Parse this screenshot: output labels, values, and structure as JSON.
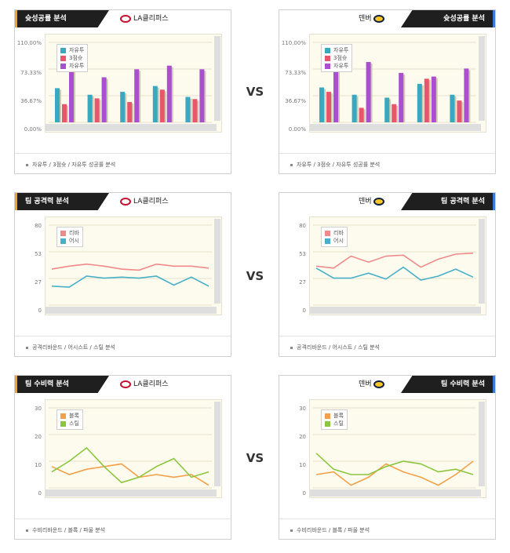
{
  "vs_label": "VS",
  "teams": {
    "left": "LA클리퍼스",
    "right": "덴버"
  },
  "colors": {
    "bar1": "#3aa8c1",
    "bar2": "#e8566b",
    "bar3": "#a94fd0",
    "line_red": "#f08a8a",
    "line_blue": "#47b0c8",
    "line_orange": "#f3a048",
    "line_green": "#8cc63f",
    "tab_left_accent": "#f3a12e",
    "tab_right_accent": "#3a7bd5"
  },
  "chart_data": [
    {
      "panel": "shooting-left",
      "type": "bar",
      "title": "슛성공률 분석",
      "yticks": [
        "110.00%",
        "73.33%",
        "36.67%",
        "0.00%"
      ],
      "ylim": [
        0,
        110
      ],
      "legend": [
        "자유투",
        "3점슛",
        "자유투"
      ],
      "categories": [
        "",
        "",
        "",
        "",
        ""
      ],
      "series": [
        {
          "name": "자유투",
          "values": [
            47,
            38,
            42,
            50,
            35
          ]
        },
        {
          "name": "3점슛",
          "values": [
            25,
            33,
            28,
            45,
            32
          ]
        },
        {
          "name": "자유투",
          "values": [
            80,
            62,
            73,
            78,
            73
          ]
        }
      ],
      "footer": "자유투 / 3점슛 / 자유투 성공률 분석"
    },
    {
      "panel": "shooting-right",
      "type": "bar",
      "title": "슛성공률 분석",
      "yticks": [
        "110.00%",
        "73.33%",
        "36.67%",
        "0.00%"
      ],
      "ylim": [
        0,
        110
      ],
      "legend": [
        "자유투",
        "3점슛",
        "자유투"
      ],
      "categories": [
        "",
        "",
        "",
        "",
        ""
      ],
      "series": [
        {
          "name": "자유투",
          "values": [
            48,
            38,
            34,
            53,
            38
          ]
        },
        {
          "name": "3점슛",
          "values": [
            42,
            20,
            25,
            60,
            30
          ]
        },
        {
          "name": "자유투",
          "values": [
            75,
            83,
            68,
            63,
            74
          ]
        }
      ],
      "footer": "자유투 / 3점슛 / 자유투 성공률 분석"
    },
    {
      "panel": "offense-left",
      "type": "line",
      "title": "팀 공격력 분석",
      "yticks": [
        "80",
        "53",
        "27",
        "0"
      ],
      "ylim": [
        0,
        80
      ],
      "legend": [
        "리바",
        "어시"
      ],
      "series": [
        {
          "name": "리바",
          "values": [
            36,
            39,
            41,
            39,
            36,
            35,
            41,
            39,
            39,
            37
          ]
        },
        {
          "name": "어시",
          "values": [
            19,
            18,
            29,
            27,
            28,
            27,
            29,
            20,
            28,
            19
          ]
        }
      ],
      "footer": "공격리바운드 / 어시스트 / 스틸 분석"
    },
    {
      "panel": "offense-right",
      "type": "line",
      "title": "팀 공격력 분석",
      "yticks": [
        "80",
        "53",
        "27",
        "0"
      ],
      "ylim": [
        0,
        80
      ],
      "legend": [
        "리바",
        "어시"
      ],
      "series": [
        {
          "name": "리바",
          "values": [
            39,
            37,
            49,
            43,
            49,
            50,
            38,
            46,
            51,
            52
          ]
        },
        {
          "name": "어시",
          "values": [
            37,
            27,
            27,
            32,
            26,
            38,
            25,
            29,
            36,
            28
          ]
        }
      ],
      "footer": "공격리바운드 / 어시스트 / 스틸 분석"
    },
    {
      "panel": "defense-left",
      "type": "line",
      "title": "팀 수비력 분석",
      "yticks": [
        "30",
        "20",
        "10",
        "0"
      ],
      "ylim": [
        0,
        30
      ],
      "legend": [
        "블록",
        "스틸"
      ],
      "series": [
        {
          "name": "블록",
          "values": [
            8,
            5,
            7,
            8,
            9,
            4,
            5,
            4,
            5,
            1
          ]
        },
        {
          "name": "스틸",
          "values": [
            6,
            10,
            15,
            8,
            2,
            4,
            8,
            11,
            4,
            6
          ]
        }
      ],
      "footer": "수비리바운드 / 블록 / 파울 분석"
    },
    {
      "panel": "defense-right",
      "type": "line",
      "title": "팀 수비력 분석",
      "yticks": [
        "30",
        "20",
        "10",
        "0"
      ],
      "ylim": [
        0,
        30
      ],
      "legend": [
        "블록",
        "스틸"
      ],
      "series": [
        {
          "name": "블록",
          "values": [
            5,
            6,
            1,
            4,
            9,
            6,
            4,
            1,
            5,
            10
          ]
        },
        {
          "name": "스틸",
          "values": [
            13,
            7,
            5,
            5,
            8,
            10,
            9,
            6,
            7,
            5
          ]
        }
      ],
      "footer": "수비리바운드 / 블록 / 파울 분석"
    }
  ]
}
